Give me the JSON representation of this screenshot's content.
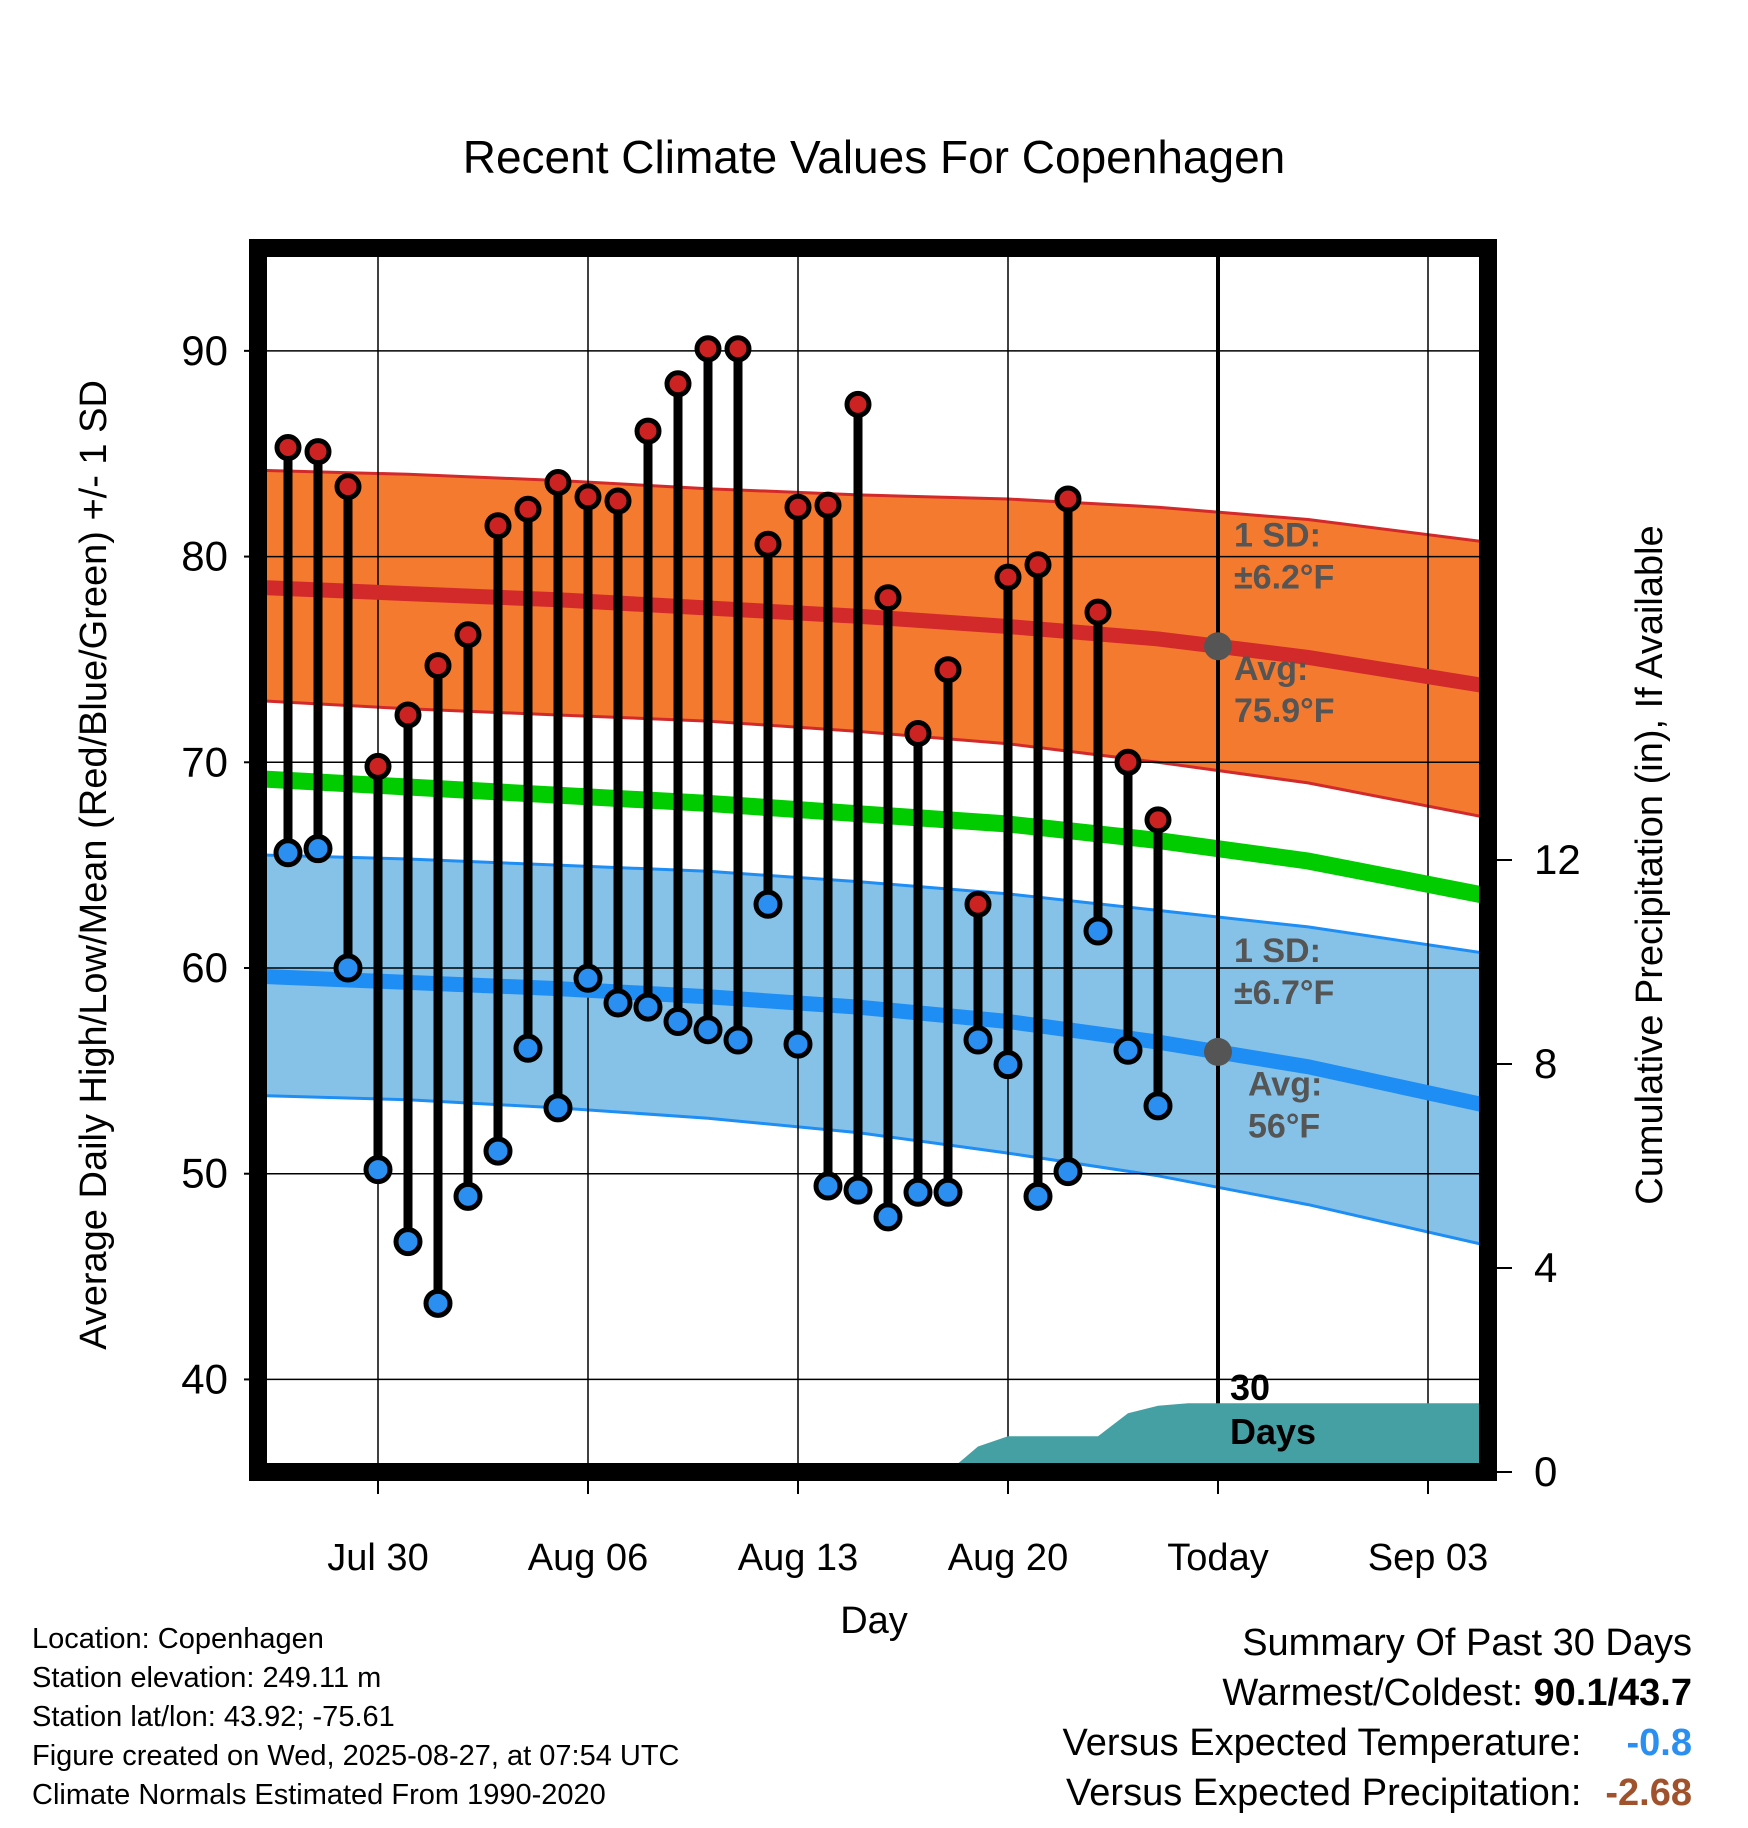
{
  "chart_data": {
    "type": "line",
    "title": "Recent Climate Values For Copenhagen",
    "xlabel": "Day",
    "ylabel": "Average Daily High/Low/Mean (Red/Blue/Green) +/- 1 SD",
    "y2label": "Cumulative Precipitation (in), If Available",
    "ylim": [
      35.5,
      95
    ],
    "y2lim": [
      0,
      24
    ],
    "xlim": [
      "2025-07-26",
      "2025-09-05"
    ],
    "yticks": [
      "40",
      "50",
      "60",
      "70",
      "80",
      "90"
    ],
    "y2ticks": [
      "0",
      "4",
      "8",
      "12"
    ],
    "xticks": [
      {
        "date": "2025-07-30",
        "label": "Jul 30"
      },
      {
        "date": "2025-08-06",
        "label": "Aug 06"
      },
      {
        "date": "2025-08-13",
        "label": "Aug 13"
      },
      {
        "date": "2025-08-20",
        "label": "Aug 20"
      },
      {
        "date": "2025-08-27",
        "label": "Today"
      },
      {
        "date": "2025-09-03",
        "label": "Sep 03"
      }
    ],
    "grid": true,
    "today": "2025-08-27",
    "window_label": [
      "30",
      "Days"
    ],
    "normals": {
      "dates": [
        "2025-07-26",
        "2025-07-31",
        "2025-08-05",
        "2025-08-10",
        "2025-08-15",
        "2025-08-20",
        "2025-08-25",
        "2025-08-30",
        "2025-09-05"
      ],
      "high_avg": [
        78.5,
        78.2,
        77.9,
        77.5,
        77.1,
        76.6,
        76.0,
        75.1,
        73.7
      ],
      "high_upper": [
        84.2,
        84.0,
        83.7,
        83.3,
        83.0,
        82.8,
        82.4,
        81.8,
        80.7
      ],
      "high_lower": [
        73.0,
        72.6,
        72.3,
        72.0,
        71.5,
        70.9,
        70.0,
        69.0,
        67.3
      ],
      "mean_avg": [
        69.2,
        68.8,
        68.4,
        68.0,
        67.5,
        67.0,
        66.2,
        65.2,
        63.5
      ],
      "low_avg": [
        59.6,
        59.3,
        59.0,
        58.6,
        58.1,
        57.4,
        56.4,
        55.2,
        53.3
      ],
      "low_upper": [
        65.5,
        65.3,
        65.0,
        64.7,
        64.2,
        63.6,
        62.8,
        62.0,
        60.7
      ],
      "low_lower": [
        53.8,
        53.6,
        53.2,
        52.7,
        52.0,
        51.0,
        49.9,
        48.5,
        46.5
      ]
    },
    "series": [
      {
        "name": "High",
        "dates": [
          "2025-07-27",
          "2025-07-28",
          "2025-07-29",
          "2025-07-30",
          "2025-07-31",
          "2025-08-01",
          "2025-08-02",
          "2025-08-03",
          "2025-08-04",
          "2025-08-05",
          "2025-08-06",
          "2025-08-07",
          "2025-08-08",
          "2025-08-09",
          "2025-08-10",
          "2025-08-11",
          "2025-08-12",
          "2025-08-13",
          "2025-08-14",
          "2025-08-15",
          "2025-08-16",
          "2025-08-17",
          "2025-08-18",
          "2025-08-19",
          "2025-08-20",
          "2025-08-21",
          "2025-08-22",
          "2025-08-23",
          "2025-08-24",
          "2025-08-25",
          "2025-08-26"
        ],
        "values": [
          85.3,
          85.1,
          83.4,
          69.8,
          72.3,
          74.7,
          76.2,
          81.5,
          82.3,
          83.6,
          82.9,
          82.7,
          86.1,
          88.4,
          90.1,
          90.1,
          80.6,
          82.4,
          82.5,
          87.4,
          78.0,
          71.4,
          74.5,
          63.1,
          79.0,
          79.6,
          82.8,
          77.3,
          70.0,
          67.2,
          null
        ]
      },
      {
        "name": "Low",
        "dates": [
          "2025-07-27",
          "2025-07-28",
          "2025-07-29",
          "2025-07-30",
          "2025-07-31",
          "2025-08-01",
          "2025-08-02",
          "2025-08-03",
          "2025-08-04",
          "2025-08-05",
          "2025-08-06",
          "2025-08-07",
          "2025-08-08",
          "2025-08-09",
          "2025-08-10",
          "2025-08-11",
          "2025-08-12",
          "2025-08-13",
          "2025-08-14",
          "2025-08-15",
          "2025-08-16",
          "2025-08-17",
          "2025-08-18",
          "2025-08-19",
          "2025-08-20",
          "2025-08-21",
          "2025-08-22",
          "2025-08-23",
          "2025-08-24",
          "2025-08-25",
          "2025-08-26"
        ],
        "values": [
          65.6,
          65.8,
          60.0,
          50.2,
          46.7,
          43.7,
          48.9,
          51.1,
          56.1,
          53.2,
          59.5,
          58.3,
          58.1,
          57.4,
          57.0,
          56.5,
          63.1,
          56.3,
          49.4,
          49.2,
          47.9,
          49.1,
          49.1,
          56.5,
          55.3,
          48.9,
          50.1,
          61.8,
          56.0,
          53.3,
          null
        ]
      }
    ],
    "precip": {
      "dates": [
        "2025-07-26",
        "2025-08-18",
        "2025-08-19",
        "2025-08-20",
        "2025-08-22",
        "2025-08-23",
        "2025-08-24",
        "2025-08-25",
        "2025-08-26",
        "2025-09-05"
      ],
      "values": [
        0,
        0,
        0.5,
        0.7,
        0.7,
        0.7,
        1.15,
        1.3,
        1.35,
        1.35
      ]
    },
    "annotations": {
      "high_sd": [
        "1 SD:",
        "±6.2°F"
      ],
      "high_avg": [
        "Avg:",
        "75.9°F"
      ],
      "low_sd": [
        "1 SD:",
        "±6.7°F"
      ],
      "low_avg": [
        "Avg:",
        "56°F"
      ]
    },
    "colors": {
      "high_band": "#f47a30",
      "high_line": "#d22a2a",
      "mean_line": "#00cc00",
      "low_band": "#86c2e8",
      "low_line": "#1e8ef4",
      "precip_fill": "#45a0a4",
      "high_marker": "#cc2222",
      "low_marker": "#2a8ff0",
      "annotation": "#555555"
    }
  },
  "info": {
    "location": "Location: Copenhagen",
    "elevation": "Station elevation: 249.11 m",
    "latlon": "Station lat/lon: 43.92; -75.61",
    "created": "Figure created on Wed, 2025-08-27, at 07:54 UTC",
    "normals": "Climate Normals Estimated From 1990-2020"
  },
  "summary": {
    "heading": "Summary Of Past 30 Days",
    "warm_cold_label": "Warmest/Coldest:",
    "warm_cold_value": "90.1/43.7",
    "temp_label": "Versus Expected Temperature:",
    "temp_value": "-0.8",
    "precip_label": "Versus Expected Precipitation:",
    "precip_value": "-2.68"
  }
}
